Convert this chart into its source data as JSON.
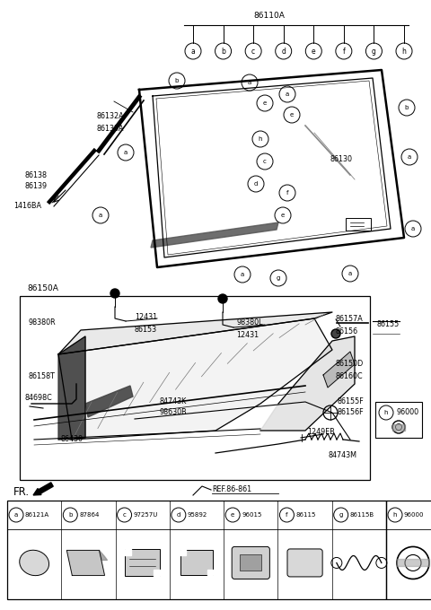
{
  "bg_color": "#ffffff",
  "part_number_main": "86110A",
  "part_number_sub": "86150A",
  "ref_label": "REF.86-861",
  "fr_label": "FR.",
  "callout_letters_top": [
    "a",
    "b",
    "c",
    "d",
    "e",
    "f",
    "g",
    "h"
  ],
  "parts_bottom": [
    {
      "letter": "a",
      "number": "86121A"
    },
    {
      "letter": "b",
      "number": "87864"
    },
    {
      "letter": "c",
      "number": "97257U"
    },
    {
      "letter": "d",
      "number": "95892"
    },
    {
      "letter": "e",
      "number": "96015"
    },
    {
      "letter": "f",
      "number": "86115"
    },
    {
      "letter": "g",
      "number": "86115B"
    }
  ],
  "part_h_number": "96000"
}
